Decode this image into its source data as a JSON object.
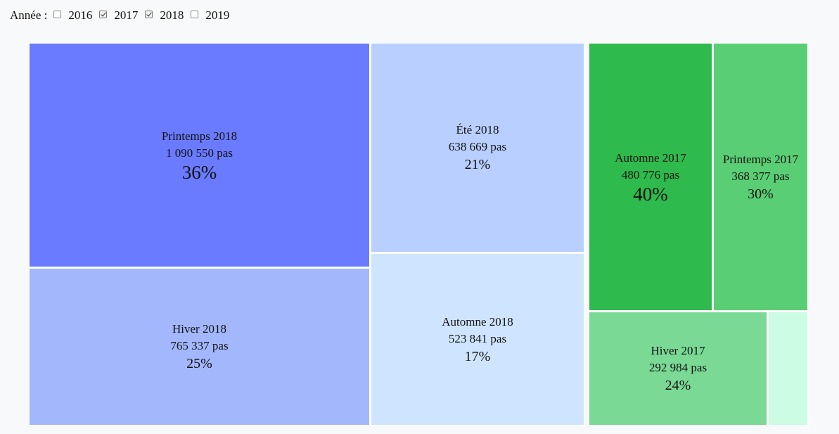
{
  "filter": {
    "label": "Année :",
    "years": [
      {
        "label": "2016",
        "checked": false
      },
      {
        "label": "2017",
        "checked": true
      },
      {
        "label": "2018",
        "checked": true
      },
      {
        "label": "2019",
        "checked": false
      }
    ]
  },
  "chart_data": {
    "type": "treemap",
    "unit": "pas",
    "groups": [
      {
        "year": "2018",
        "cells": [
          {
            "name": "Printemps 2018",
            "value": 1090550,
            "steps": "1 090 550 pas",
            "pct": "36%",
            "color": "#6a7bff"
          },
          {
            "name": "Été 2018",
            "value": 638669,
            "steps": "638 669 pas",
            "pct": "21%",
            "color": "#b8cfff"
          },
          {
            "name": "Hiver 2018",
            "value": 765337,
            "steps": "765 337 pas",
            "pct": "25%",
            "color": "#a2b7fc"
          },
          {
            "name": "Automne 2018",
            "value": 523841,
            "steps": "523 841 pas",
            "pct": "17%",
            "color": "#cfe5ff"
          }
        ]
      },
      {
        "year": "2017",
        "cells": [
          {
            "name": "Automne 2017",
            "value": 480776,
            "steps": "480 776 pas",
            "pct": "40%",
            "color": "#2eba4c"
          },
          {
            "name": "Printemps 2017",
            "value": 368377,
            "steps": "368 377 pas",
            "pct": "30%",
            "color": "#5ace74"
          },
          {
            "name": "Hiver 2017",
            "value": 292984,
            "steps": "292 984 pas",
            "pct": "24%",
            "color": "#7ad994"
          },
          {
            "name": "",
            "value": null,
            "steps": "",
            "pct": "",
            "color": "#ccfce3"
          }
        ]
      }
    ]
  }
}
